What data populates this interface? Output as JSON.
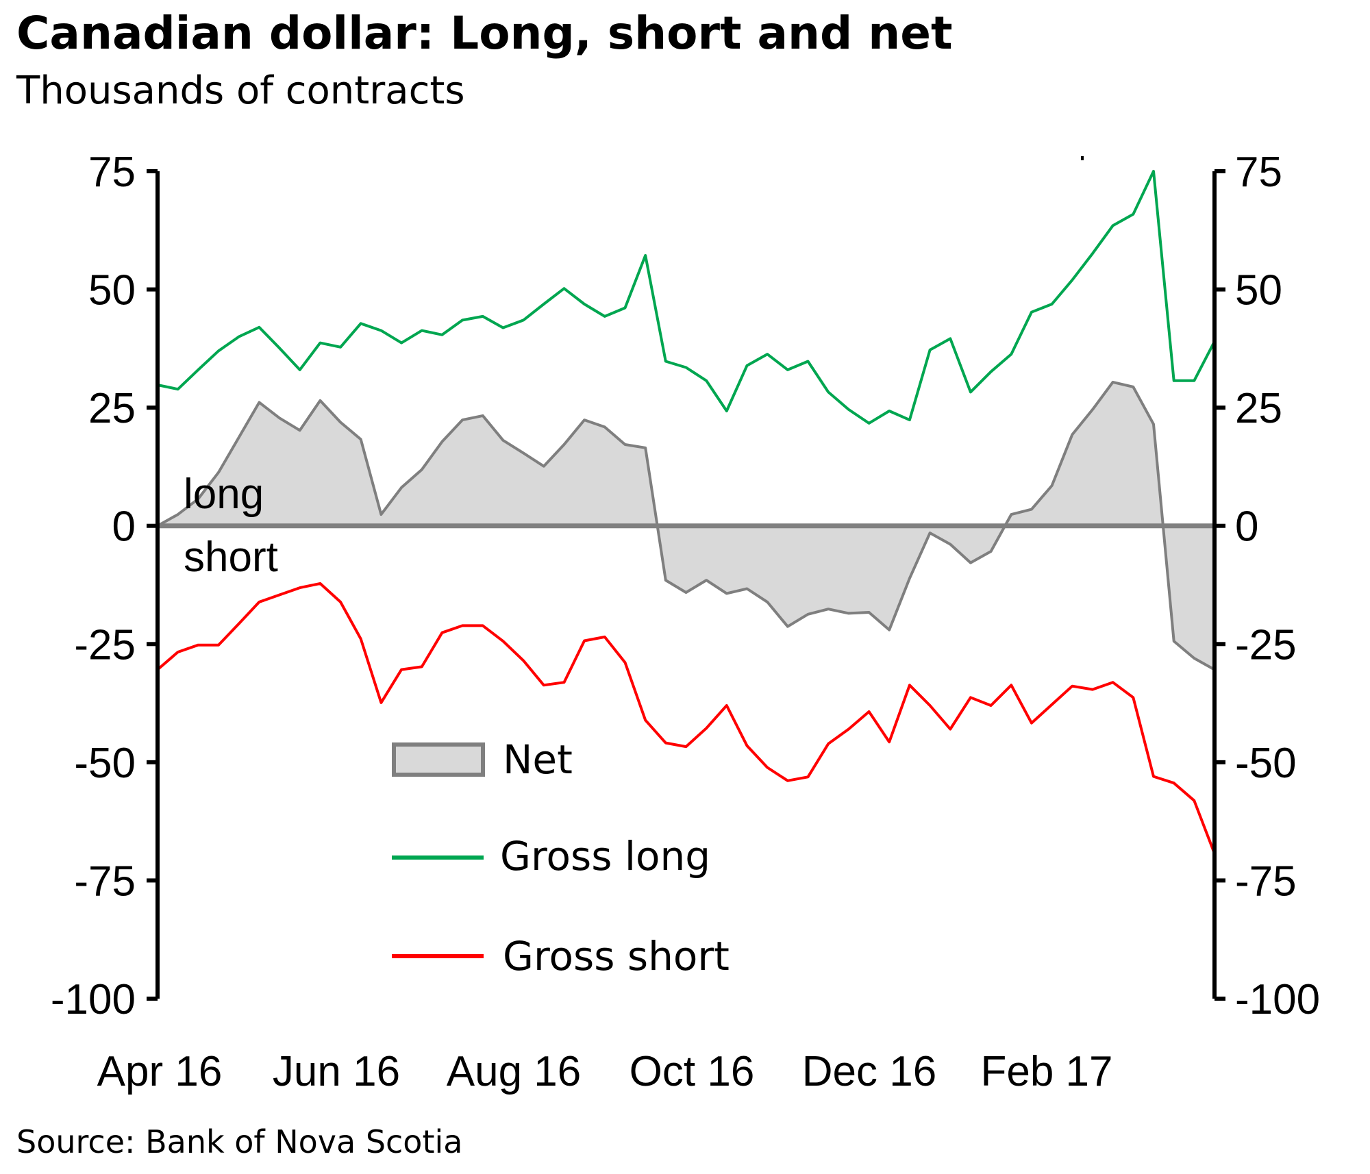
{
  "header": {
    "title": "Canadian dollar: Long, short and net",
    "subtitle": "Thousands of contracts"
  },
  "footer": {
    "source": "Source: Bank of Nova Scotia"
  },
  "annotations": {
    "above_zero": "long",
    "below_zero": "short"
  },
  "colors": {
    "net_fill": "#d9d9d9",
    "net_line": "#7f7f7f",
    "gross_long": "#00a650",
    "gross_short": "#ff0000",
    "axis": "#000000"
  },
  "chart_data": {
    "type": "area",
    "title": "Canadian dollar: Long, short and net",
    "subtitle": "Thousands of contracts",
    "xlabel": "",
    "ylabel": "Thousands of contracts",
    "ylim": [
      -100,
      75
    ],
    "yticks": [
      "75",
      "50",
      "25",
      "0",
      "-25",
      "-50",
      "-75",
      "-100"
    ],
    "ytick_values": [
      75,
      50,
      25,
      0,
      -25,
      -50,
      -75,
      -100
    ],
    "xticks": [
      "Apr 16",
      "Jun 16",
      "Aug 16",
      "Oct 16",
      "Dec 16",
      "Feb 17"
    ],
    "xtick_index": [
      0,
      9,
      18,
      27,
      36,
      45
    ],
    "grid": false,
    "legend_position": "bottom-center",
    "frequency": "weekly",
    "series": [
      {
        "name": "Net",
        "kind": "area",
        "values": [
          0,
          2.4,
          5.7,
          11.3,
          18.7,
          26.1,
          22.8,
          20.2,
          26.5,
          21.9,
          18.3,
          2.4,
          8.1,
          11.9,
          17.8,
          22.4,
          23.3,
          18.1,
          15.4,
          12.6,
          17.2,
          22.4,
          20.9,
          17.2,
          16.5,
          -11.5,
          -14.1,
          -11.5,
          -14.3,
          -13.3,
          -16.1,
          -21.3,
          -18.7,
          -17.6,
          -18.5,
          -18.3,
          -22,
          -11.1,
          -1.5,
          -3.9,
          -7.8,
          -5.4,
          2.4,
          3.5,
          8.5,
          19.3,
          24.6,
          30.4,
          29.4,
          21.5,
          -24.4,
          -28,
          -30.4
        ]
      },
      {
        "name": "Gross long",
        "kind": "line",
        "values": [
          29.8,
          28.9,
          33,
          37,
          40,
          42,
          37.6,
          33,
          38.7,
          37.8,
          42.8,
          41.3,
          38.7,
          41.3,
          40.4,
          43.5,
          44.3,
          41.9,
          43.5,
          46.9,
          50.2,
          46.9,
          44.3,
          46.1,
          57.2,
          34.8,
          33.5,
          30.7,
          24.3,
          33.9,
          36.3,
          33,
          34.8,
          28.3,
          24.6,
          21.7,
          24.3,
          22.4,
          37.2,
          39.6,
          28.3,
          32.6,
          36.3,
          45.2,
          46.9,
          52,
          57.6,
          63.5,
          65.9,
          75,
          30.7,
          30.7,
          39
        ]
      },
      {
        "name": "Gross short",
        "kind": "line",
        "values": [
          -30.4,
          -26.7,
          -25.2,
          -25.2,
          -20.7,
          -16.1,
          -14.6,
          -13.1,
          -12.2,
          -16.1,
          -23.9,
          -37.4,
          -30.4,
          -29.8,
          -22.6,
          -21.1,
          -21.1,
          -24.4,
          -28.5,
          -33.7,
          -33.1,
          -24.3,
          -23.5,
          -28.9,
          -41.1,
          -45.9,
          -46.7,
          -42.8,
          -38,
          -46.5,
          -51.1,
          -53.9,
          -53.1,
          -46.1,
          -43,
          -39.3,
          -45.7,
          -33.7,
          -38,
          -43,
          -36.3,
          -38,
          -33.7,
          -41.7,
          -37.8,
          -33.9,
          -34.6,
          -33.1,
          -36.3,
          -53,
          -54.4,
          -58.1,
          -69.3
        ]
      }
    ]
  }
}
